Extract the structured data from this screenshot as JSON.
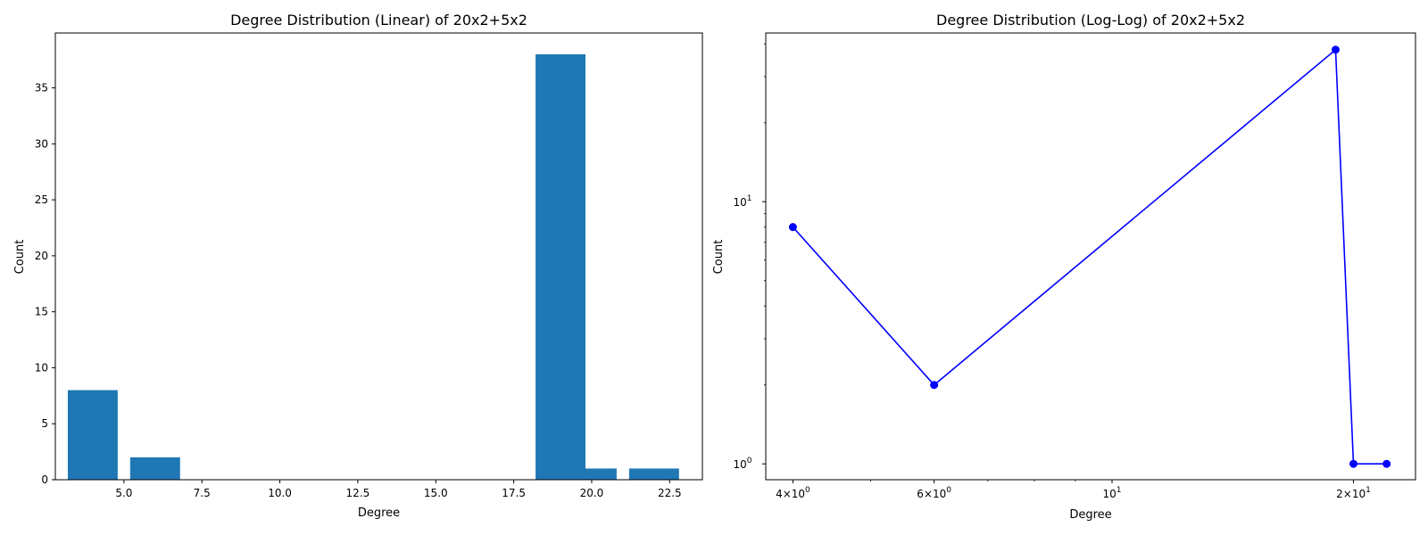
{
  "chart_data": [
    {
      "type": "bar",
      "title": "Degree Distribution (Linear) of 20x2+5x2",
      "xlabel": "Degree",
      "ylabel": "Count",
      "x": [
        4,
        6,
        19,
        20,
        22
      ],
      "values": [
        8,
        2,
        38,
        1,
        1
      ],
      "bar_width": 1.6,
      "xlim": [
        2.8,
        23.55
      ],
      "ylim": [
        0,
        39.9
      ],
      "x_ticks": [
        5.0,
        7.5,
        10.0,
        12.5,
        15.0,
        17.5,
        20.0,
        22.5
      ],
      "x_tick_labels": [
        "5.0",
        "7.5",
        "10.0",
        "12.5",
        "15.0",
        "17.5",
        "20.0",
        "22.5"
      ],
      "y_ticks": [
        0,
        5,
        10,
        15,
        20,
        25,
        30,
        35
      ],
      "y_tick_labels": [
        "0",
        "5",
        "10",
        "15",
        "20",
        "25",
        "30",
        "35"
      ],
      "bar_color": "#1f77b4",
      "grid": false
    },
    {
      "type": "line",
      "title": "Degree Distribution (Log-Log) of 20x2+5x2",
      "xlabel": "Degree",
      "ylabel": "Count",
      "x": [
        4,
        6,
        19,
        20,
        22
      ],
      "y": [
        8,
        2,
        38,
        1,
        1
      ],
      "x_scale": "log",
      "y_scale": "log",
      "xlim": [
        3.7,
        23.9
      ],
      "ylim": [
        0.87,
        44
      ],
      "x_major_ticks": [
        {
          "value": 4,
          "base": "4",
          "mult": "×",
          "pow10": "10",
          "exp": "0"
        },
        {
          "value": 6,
          "base": "6",
          "mult": "×",
          "pow10": "10",
          "exp": "0"
        },
        {
          "value": 10,
          "base": "",
          "mult": "",
          "pow10": "10",
          "exp": "1"
        },
        {
          "value": 20,
          "base": "2",
          "mult": "×",
          "pow10": "10",
          "exp": "1"
        }
      ],
      "x_minor_ticks": [
        5,
        7,
        8,
        9,
        30
      ],
      "y_major_ticks": [
        {
          "value": 1,
          "pow10": "10",
          "exp": "0"
        },
        {
          "value": 10,
          "pow10": "10",
          "exp": "1"
        }
      ],
      "y_minor_ticks": [
        2,
        3,
        4,
        5,
        6,
        7,
        8,
        9,
        20,
        30,
        40
      ],
      "line_color": "#0000ff",
      "marker": "circle",
      "grid": false
    }
  ]
}
